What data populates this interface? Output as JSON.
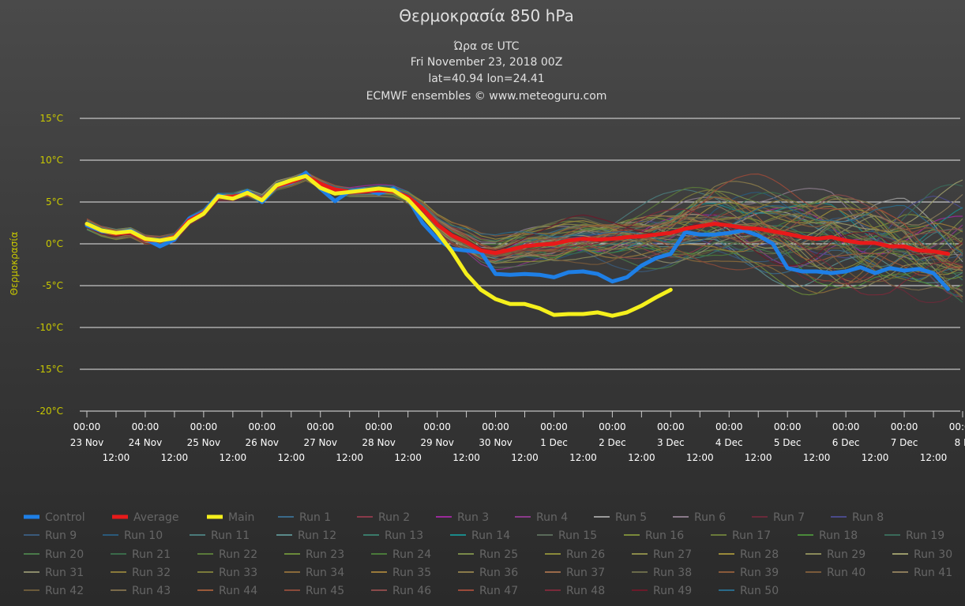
{
  "chart_data": {
    "type": "line",
    "title": "Θερμοκρασία 850 hPa",
    "subtitle": [
      "Ώρα σε UTC",
      "Fri November 23, 2018 00Z",
      "lat=40.94 lon=24.41",
      "ECMWF ensembles © www.meteoguru.com"
    ],
    "ylabel": "Θερμοκρασία",
    "ylim": [
      -20,
      15
    ],
    "yticks": [
      {
        "value": 15,
        "label": "15°C"
      },
      {
        "value": 10,
        "label": "10°C"
      },
      {
        "value": 5,
        "label": "5°C"
      },
      {
        "value": 0,
        "label": "0°C"
      },
      {
        "value": -5,
        "label": "-5°C"
      },
      {
        "value": -10,
        "label": "-10°C"
      },
      {
        "value": -15,
        "label": "-15°C"
      },
      {
        "value": -20,
        "label": "-20°C"
      }
    ],
    "xlim_hours": [
      0,
      360
    ],
    "xticks": [
      {
        "h": 0,
        "time": "00:00",
        "date": "23 Nov"
      },
      {
        "h": 12,
        "time": "12:00"
      },
      {
        "h": 24,
        "time": "00:00",
        "date": "24 Nov"
      },
      {
        "h": 36,
        "time": "12:00"
      },
      {
        "h": 48,
        "time": "00:00",
        "date": "25 Nov"
      },
      {
        "h": 60,
        "time": "12:00"
      },
      {
        "h": 72,
        "time": "00:00",
        "date": "26 Nov"
      },
      {
        "h": 84,
        "time": "12:00"
      },
      {
        "h": 96,
        "time": "00:00",
        "date": "27 Nov"
      },
      {
        "h": 108,
        "time": "12:00"
      },
      {
        "h": 120,
        "time": "00:00",
        "date": "28 Nov"
      },
      {
        "h": 132,
        "time": "12:00"
      },
      {
        "h": 144,
        "time": "00:00",
        "date": "29 Nov"
      },
      {
        "h": 156,
        "time": "12:00"
      },
      {
        "h": 168,
        "time": "00:00",
        "date": "30 Nov"
      },
      {
        "h": 180,
        "time": "12:00"
      },
      {
        "h": 192,
        "time": "00:00",
        "date": "1 Dec"
      },
      {
        "h": 204,
        "time": "12:00"
      },
      {
        "h": 216,
        "time": "00:00",
        "date": "2 Dec"
      },
      {
        "h": 228,
        "time": "12:00"
      },
      {
        "h": 240,
        "time": "00:00",
        "date": "3 Dec"
      },
      {
        "h": 252,
        "time": "12:00"
      },
      {
        "h": 264,
        "time": "00:00",
        "date": "4 Dec"
      },
      {
        "h": 276,
        "time": "12:00"
      },
      {
        "h": 288,
        "time": "00:00",
        "date": "5 Dec"
      },
      {
        "h": 300,
        "time": "12:00"
      },
      {
        "h": 312,
        "time": "00:00",
        "date": "6 Dec"
      },
      {
        "h": 324,
        "time": "12:00"
      },
      {
        "h": 336,
        "time": "00:00",
        "date": "7 Dec"
      },
      {
        "h": 348,
        "time": "12:00"
      },
      {
        "h": 360,
        "time": "00:00",
        "date": "8 D"
      }
    ],
    "grid": true,
    "legend_position": "bottom",
    "series": [
      {
        "name": "Control",
        "color": "#1e7fe6",
        "width": 5,
        "points": [
          [
            0,
            2.2
          ],
          [
            6,
            1.5
          ],
          [
            12,
            1.3
          ],
          [
            18,
            1.6
          ],
          [
            24,
            0.6
          ],
          [
            30,
            -0.3
          ],
          [
            36,
            0.5
          ],
          [
            42,
            3
          ],
          [
            48,
            3.8
          ],
          [
            54,
            5.8
          ],
          [
            60,
            5.5
          ],
          [
            66,
            6.3
          ],
          [
            72,
            5
          ],
          [
            78,
            6.9
          ],
          [
            84,
            7.3
          ],
          [
            90,
            8.5
          ],
          [
            96,
            6.6
          ],
          [
            102,
            5.1
          ],
          [
            108,
            6.3
          ],
          [
            114,
            6.5
          ],
          [
            120,
            6
          ],
          [
            126,
            6.6
          ],
          [
            132,
            5.4
          ],
          [
            138,
            2.5
          ],
          [
            144,
            0.6
          ],
          [
            150,
            -0.6
          ],
          [
            156,
            -0.8
          ],
          [
            162,
            -1
          ],
          [
            168,
            -3.6
          ],
          [
            174,
            -3.7
          ],
          [
            180,
            -3.6
          ],
          [
            186,
            -3.7
          ],
          [
            192,
            -4
          ],
          [
            198,
            -3.4
          ],
          [
            204,
            -3.3
          ],
          [
            210,
            -3.6
          ],
          [
            216,
            -4.5
          ],
          [
            222,
            -4
          ],
          [
            228,
            -2.6
          ],
          [
            234,
            -1.7
          ],
          [
            240,
            -1.2
          ],
          [
            246,
            1.4
          ],
          [
            252,
            1.1
          ],
          [
            258,
            1.1
          ],
          [
            264,
            1.3
          ],
          [
            270,
            1.6
          ],
          [
            276,
            1
          ],
          [
            282,
            0
          ],
          [
            288,
            -2.9
          ],
          [
            294,
            -3.3
          ],
          [
            300,
            -3.3
          ],
          [
            306,
            -3.5
          ],
          [
            312,
            -3.3
          ],
          [
            318,
            -2.8
          ],
          [
            324,
            -3.5
          ],
          [
            330,
            -2.9
          ],
          [
            336,
            -3.2
          ],
          [
            342,
            -3
          ],
          [
            348,
            -3.5
          ],
          [
            354,
            -5.4
          ]
        ]
      },
      {
        "name": "Average",
        "color": "#e81a1a",
        "width": 5,
        "points": [
          [
            0,
            2.4
          ],
          [
            6,
            1.6
          ],
          [
            12,
            1.2
          ],
          [
            18,
            1.4
          ],
          [
            24,
            0.5
          ],
          [
            30,
            0.4
          ],
          [
            36,
            0.8
          ],
          [
            42,
            2.8
          ],
          [
            48,
            3.7
          ],
          [
            54,
            5.6
          ],
          [
            60,
            5.6
          ],
          [
            66,
            6
          ],
          [
            72,
            5.3
          ],
          [
            78,
            6.9
          ],
          [
            84,
            7.4
          ],
          [
            90,
            8.1
          ],
          [
            96,
            7.2
          ],
          [
            102,
            6.5
          ],
          [
            108,
            6.2
          ],
          [
            114,
            6.3
          ],
          [
            120,
            6.4
          ],
          [
            126,
            6.3
          ],
          [
            132,
            5.6
          ],
          [
            138,
            4.2
          ],
          [
            144,
            2.3
          ],
          [
            150,
            1
          ],
          [
            156,
            0.2
          ],
          [
            162,
            -0.8
          ],
          [
            168,
            -1.1
          ],
          [
            174,
            -0.7
          ],
          [
            180,
            -0.3
          ],
          [
            186,
            -0.1
          ],
          [
            192,
            0
          ],
          [
            198,
            0.4
          ],
          [
            204,
            0.6
          ],
          [
            210,
            0.5
          ],
          [
            216,
            0.6
          ],
          [
            222,
            0.8
          ],
          [
            228,
            0.9
          ],
          [
            234,
            1.1
          ],
          [
            240,
            1.3
          ],
          [
            246,
            1.8
          ],
          [
            252,
            2.1
          ],
          [
            258,
            2.4
          ],
          [
            264,
            2.2
          ],
          [
            270,
            1.9
          ],
          [
            276,
            1.8
          ],
          [
            282,
            1.5
          ],
          [
            288,
            1.2
          ],
          [
            294,
            0.8
          ],
          [
            300,
            0.6
          ],
          [
            306,
            0.8
          ],
          [
            312,
            0.4
          ],
          [
            318,
            0.1
          ],
          [
            324,
            0.1
          ],
          [
            330,
            -0.3
          ],
          [
            336,
            -0.3
          ],
          [
            342,
            -0.8
          ],
          [
            348,
            -0.9
          ],
          [
            354,
            -1.2
          ]
        ]
      },
      {
        "name": "Main",
        "color": "#f5f01c",
        "width": 5,
        "points": [
          [
            0,
            2.4
          ],
          [
            6,
            1.6
          ],
          [
            12,
            1.3
          ],
          [
            18,
            1.5
          ],
          [
            24,
            0.6
          ],
          [
            30,
            0.4
          ],
          [
            36,
            0.7
          ],
          [
            42,
            2.6
          ],
          [
            48,
            3.6
          ],
          [
            54,
            5.7
          ],
          [
            60,
            5.4
          ],
          [
            66,
            6.1
          ],
          [
            72,
            5.2
          ],
          [
            78,
            7
          ],
          [
            84,
            7.6
          ],
          [
            90,
            8.1
          ],
          [
            96,
            6.7
          ],
          [
            102,
            6
          ],
          [
            108,
            6.2
          ],
          [
            114,
            6.4
          ],
          [
            120,
            6.6
          ],
          [
            126,
            6.4
          ],
          [
            132,
            5.3
          ],
          [
            138,
            3.4
          ],
          [
            144,
            1.4
          ],
          [
            150,
            -0.9
          ],
          [
            156,
            -3.6
          ],
          [
            162,
            -5.5
          ],
          [
            168,
            -6.6
          ],
          [
            174,
            -7.2
          ],
          [
            180,
            -7.2
          ],
          [
            186,
            -7.7
          ],
          [
            192,
            -8.5
          ],
          [
            198,
            -8.4
          ],
          [
            204,
            -8.4
          ],
          [
            210,
            -8.2
          ],
          [
            216,
            -8.6
          ],
          [
            222,
            -8.2
          ],
          [
            228,
            -7.4
          ],
          [
            234,
            -6.4
          ],
          [
            240,
            -5.5
          ]
        ]
      }
    ],
    "legend": [
      {
        "name": "Control",
        "color": "#1e7fe6",
        "bold": true
      },
      {
        "name": "Average",
        "color": "#e81a1a",
        "bold": true
      },
      {
        "name": "Main",
        "color": "#f5f01c",
        "bold": true
      },
      {
        "name": "Run 1",
        "color": "#3a6a8a"
      },
      {
        "name": "Run 2",
        "color": "#8a3a4a"
      },
      {
        "name": "Run 3",
        "color": "#9a2a9a"
      },
      {
        "name": "Run 4",
        "color": "#8a3a8a"
      },
      {
        "name": "Run 5",
        "color": "#9a9a9a"
      },
      {
        "name": "Run 6",
        "color": "#8a7a8a"
      },
      {
        "name": "Run 7",
        "color": "#6a2a3a"
      },
      {
        "name": "Run 8",
        "color": "#4a4a8a"
      },
      {
        "name": "Run 9",
        "color": "#3a5a7a"
      },
      {
        "name": "Run 10",
        "color": "#2a5a7a"
      },
      {
        "name": "Run 11",
        "color": "#4a7a7a"
      },
      {
        "name": "Run 12",
        "color": "#5a8a8a"
      },
      {
        "name": "Run 13",
        "color": "#3a7a6a"
      },
      {
        "name": "Run 14",
        "color": "#1a8a8a"
      },
      {
        "name": "Run 15",
        "color": "#5a6a5a"
      },
      {
        "name": "Run 16",
        "color": "#7a8a3a"
      },
      {
        "name": "Run 17",
        "color": "#6a7a3a"
      },
      {
        "name": "Run 18",
        "color": "#4a8a3a"
      },
      {
        "name": "Run 19",
        "color": "#3a6a5a"
      },
      {
        "name": "Run 20",
        "color": "#4a7a4a"
      },
      {
        "name": "Run 21",
        "color": "#3a6a4a"
      },
      {
        "name": "Run 22",
        "color": "#5a7a3a"
      },
      {
        "name": "Run 23",
        "color": "#6a8a3a"
      },
      {
        "name": "Run 24",
        "color": "#4a7a3a"
      },
      {
        "name": "Run 25",
        "color": "#7a8a4a"
      },
      {
        "name": "Run 26",
        "color": "#8a8a3a"
      },
      {
        "name": "Run 27",
        "color": "#8a8a4a"
      },
      {
        "name": "Run 28",
        "color": "#9a8a3a"
      },
      {
        "name": "Run 29",
        "color": "#8a8a5a"
      },
      {
        "name": "Run 30",
        "color": "#9a9a6a"
      },
      {
        "name": "Run 31",
        "color": "#8a8a6a"
      },
      {
        "name": "Run 32",
        "color": "#8a7a3a"
      },
      {
        "name": "Run 33",
        "color": "#7a7a3a"
      },
      {
        "name": "Run 34",
        "color": "#8a6a3a"
      },
      {
        "name": "Run 35",
        "color": "#9a7a3a"
      },
      {
        "name": "Run 36",
        "color": "#8a7a4a"
      },
      {
        "name": "Run 37",
        "color": "#9a6a4a"
      },
      {
        "name": "Run 38",
        "color": "#6a6a4a"
      },
      {
        "name": "Run 39",
        "color": "#8a5a3a"
      },
      {
        "name": "Run 40",
        "color": "#7a5a3a"
      },
      {
        "name": "Run 41",
        "color": "#8a7a5a"
      },
      {
        "name": "Run 42",
        "color": "#6a5a3a"
      },
      {
        "name": "Run 43",
        "color": "#7a6a4a"
      },
      {
        "name": "Run 44",
        "color": "#9a5a3a"
      },
      {
        "name": "Run 45",
        "color": "#8a4a3a"
      },
      {
        "name": "Run 46",
        "color": "#8a4a4a"
      },
      {
        "name": "Run 47",
        "color": "#9a4a3a"
      },
      {
        "name": "Run 48",
        "color": "#7a2a3a"
      },
      {
        "name": "Run 49",
        "color": "#6a1a2a"
      },
      {
        "name": "Run 50",
        "color": "#2a6a8a"
      }
    ]
  }
}
